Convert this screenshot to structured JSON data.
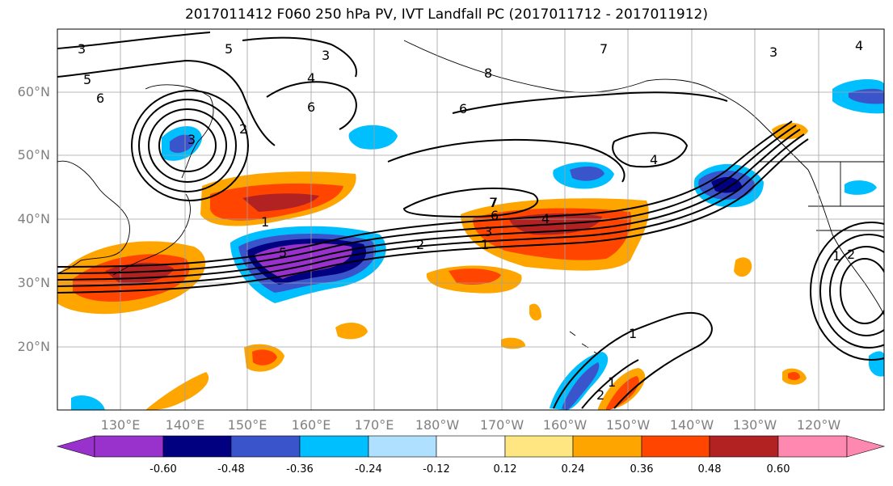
{
  "title": "2017011412 F060 250 hPa PV, IVT Landfall PC (2017011712 - 2017011912)",
  "lat_labels": [
    "60°N",
    "50°N",
    "40°N",
    "30°N",
    "20°N"
  ],
  "lon_labels": [
    "130°E",
    "140°E",
    "150°E",
    "160°E",
    "170°E",
    "180°W",
    "170°W",
    "160°W",
    "150°W",
    "140°W",
    "130°W",
    "120°W"
  ],
  "colorbar": {
    "ticks": [
      "-0.60",
      "-0.48",
      "-0.36",
      "-0.24",
      "-0.12",
      "0.12",
      "0.24",
      "0.36",
      "0.48",
      "0.60"
    ],
    "colors": [
      "#9932cc",
      "#000080",
      "#3a55cc",
      "#00bfff",
      "#b0e0ff",
      "#ffffff",
      "#ffe680",
      "#ffa500",
      "#ff4500",
      "#b22222",
      "#ff88b0"
    ]
  },
  "contour_labels": [
    "3",
    "5",
    "6",
    "5",
    "3",
    "2",
    "4",
    "6",
    "7",
    "6",
    "4",
    "1",
    "3",
    "2",
    "1",
    "7",
    "8",
    "6",
    "3",
    "4",
    "4",
    "7",
    "1",
    "2",
    "1",
    "2",
    "3",
    "5",
    "1"
  ]
}
